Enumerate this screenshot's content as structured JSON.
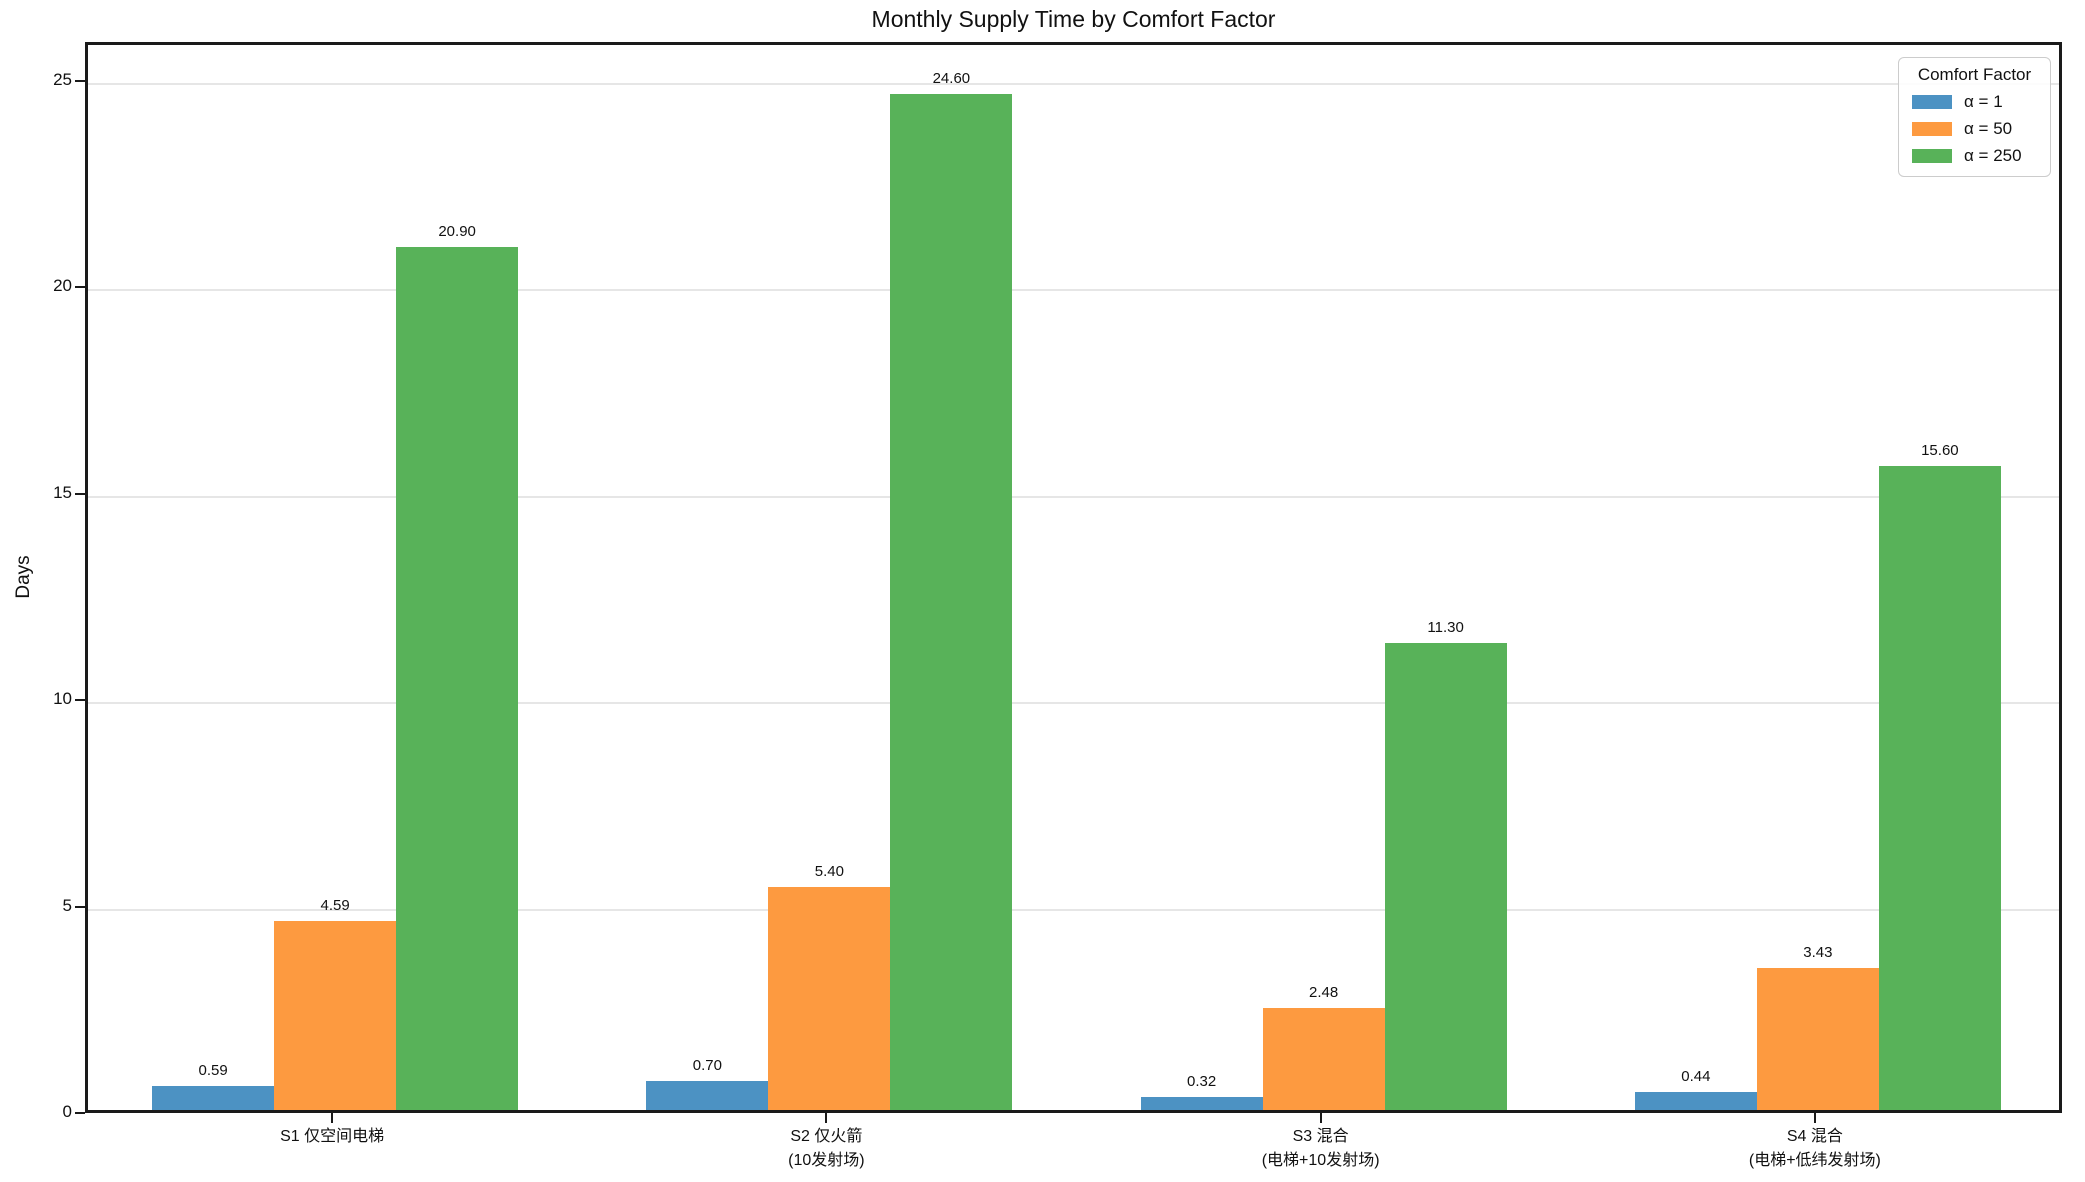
{
  "colors": {
    "grid": "#e6e6e6",
    "spine": "#1a1a1a",
    "background": "#ffffff",
    "bar_alpha1": "#4C92C3",
    "bar_alpha50": "#FD9A40",
    "bar_alpha250": "#58B259"
  },
  "chart_data": {
    "type": "bar",
    "title": "Monthly Supply Time by Comfort Factor",
    "xlabel": "",
    "ylabel": "Days",
    "ylim": [
      0,
      25.94
    ],
    "yticks": [
      0,
      5,
      10,
      15,
      20,
      25
    ],
    "grid": "horizontal",
    "legend": {
      "title": "Comfort Factor",
      "position": "upper right"
    },
    "categories": [
      "S1 仅空间电梯",
      "S2 仅火箭\n(10发射场)",
      "S3 混合\n(电梯+10发射场)",
      "S4 混合\n(电梯+低纬发射场)"
    ],
    "series": [
      {
        "name": "α = 1",
        "color": "#4C92C3",
        "values": [
          0.59,
          0.7,
          0.32,
          0.44
        ]
      },
      {
        "name": "α = 50",
        "color": "#FD9A40",
        "values": [
          4.59,
          5.4,
          2.48,
          3.43
        ]
      },
      {
        "name": "α = 250",
        "color": "#58B259",
        "values": [
          20.9,
          24.6,
          11.3,
          15.6
        ]
      }
    ],
    "value_labels": [
      [
        "0.59",
        "4.59",
        "20.90"
      ],
      [
        "0.70",
        "5.40",
        "24.60"
      ],
      [
        "0.32",
        "2.48",
        "11.30"
      ],
      [
        "0.44",
        "3.43",
        "15.60"
      ]
    ]
  }
}
